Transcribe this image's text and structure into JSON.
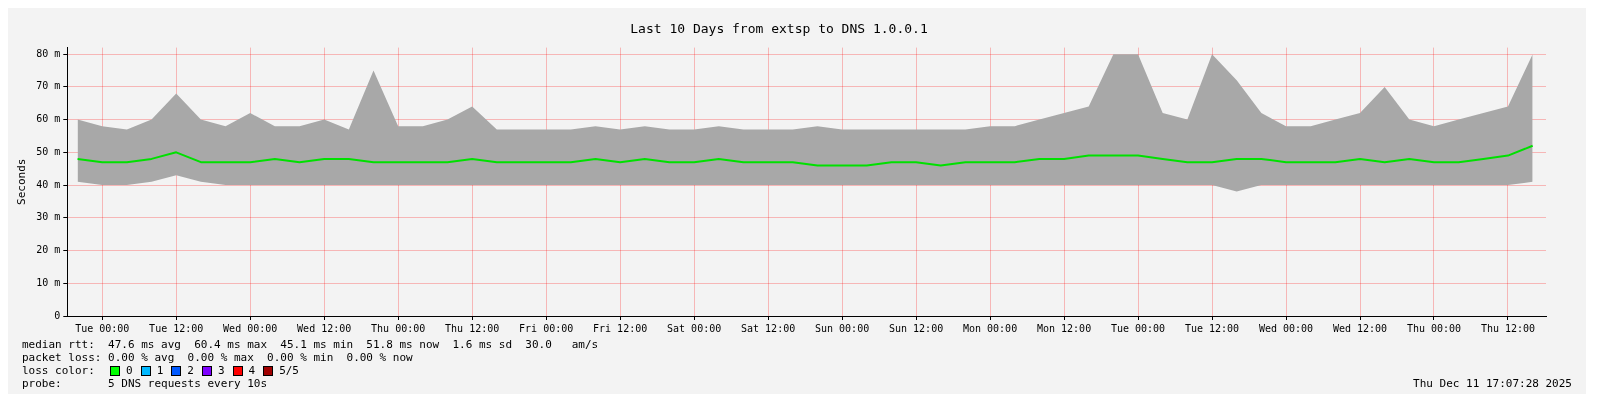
{
  "chart_data": {
    "type": "line",
    "title": "Last 10 Days from extsp to DNS 1.0.0.1",
    "ylabel": "Seconds",
    "xlim": [
      "2025-12-01T18:20",
      "2025-12-11T18:10"
    ],
    "xticks": [
      {
        "value": "2025-12-02T00:00",
        "label": "Tue 00:00"
      },
      {
        "value": "2025-12-02T12:00",
        "label": "Tue 12:00"
      },
      {
        "value": "2025-12-03T00:00",
        "label": "Wed 00:00"
      },
      {
        "value": "2025-12-03T12:00",
        "label": "Wed 12:00"
      },
      {
        "value": "2025-12-04T00:00",
        "label": "Thu 00:00"
      },
      {
        "value": "2025-12-04T12:00",
        "label": "Thu 12:00"
      },
      {
        "value": "2025-12-05T00:00",
        "label": "Fri 00:00"
      },
      {
        "value": "2025-12-05T12:00",
        "label": "Fri 12:00"
      },
      {
        "value": "2025-12-06T00:00",
        "label": "Sat 00:00"
      },
      {
        "value": "2025-12-06T12:00",
        "label": "Sat 12:00"
      },
      {
        "value": "2025-12-07T00:00",
        "label": "Sun 00:00"
      },
      {
        "value": "2025-12-07T12:00",
        "label": "Sun 12:00"
      },
      {
        "value": "2025-12-08T00:00",
        "label": "Mon 00:00"
      },
      {
        "value": "2025-12-08T12:00",
        "label": "Mon 12:00"
      },
      {
        "value": "2025-12-09T00:00",
        "label": "Tue 00:00"
      },
      {
        "value": "2025-12-09T12:00",
        "label": "Tue 12:00"
      },
      {
        "value": "2025-12-10T00:00",
        "label": "Wed 00:00"
      },
      {
        "value": "2025-12-10T12:00",
        "label": "Wed 12:00"
      },
      {
        "value": "2025-12-11T00:00",
        "label": "Thu 00:00"
      },
      {
        "value": "2025-12-11T12:00",
        "label": "Thu 12:00"
      }
    ],
    "ylim": [
      0,
      82
    ],
    "yticks": [
      0,
      {
        "value": 10,
        "label": "10 m"
      },
      {
        "value": 20,
        "label": "20 m"
      },
      {
        "value": 30,
        "label": "30 m"
      },
      {
        "value": 40,
        "label": "40 m"
      },
      {
        "value": 50,
        "label": "50 m"
      },
      {
        "value": 60,
        "label": "60 m"
      },
      {
        "value": 70,
        "label": "70 m"
      },
      {
        "value": 80,
        "label": "80 m"
      }
    ],
    "grid": true,
    "legend": false,
    "marker": "none",
    "line_style": "solid",
    "x": [
      "2025-12-01T20:00",
      "2025-12-02T00:00",
      "2025-12-02T04:00",
      "2025-12-02T08:00",
      "2025-12-02T12:00",
      "2025-12-02T16:00",
      "2025-12-02T20:00",
      "2025-12-03T00:00",
      "2025-12-03T04:00",
      "2025-12-03T08:00",
      "2025-12-03T12:00",
      "2025-12-03T16:00",
      "2025-12-03T20:00",
      "2025-12-04T00:00",
      "2025-12-04T04:00",
      "2025-12-04T08:00",
      "2025-12-04T12:00",
      "2025-12-04T16:00",
      "2025-12-04T20:00",
      "2025-12-05T00:00",
      "2025-12-05T04:00",
      "2025-12-05T08:00",
      "2025-12-05T12:00",
      "2025-12-05T16:00",
      "2025-12-05T20:00",
      "2025-12-06T00:00",
      "2025-12-06T04:00",
      "2025-12-06T08:00",
      "2025-12-06T12:00",
      "2025-12-06T16:00",
      "2025-12-06T20:00",
      "2025-12-07T00:00",
      "2025-12-07T04:00",
      "2025-12-07T08:00",
      "2025-12-07T12:00",
      "2025-12-07T16:00",
      "2025-12-07T20:00",
      "2025-12-08T00:00",
      "2025-12-08T04:00",
      "2025-12-08T08:00",
      "2025-12-08T12:00",
      "2025-12-08T16:00",
      "2025-12-08T20:00",
      "2025-12-09T00:00",
      "2025-12-09T04:00",
      "2025-12-09T08:00",
      "2025-12-09T12:00",
      "2025-12-09T16:00",
      "2025-12-09T20:00",
      "2025-12-10T00:00",
      "2025-12-10T04:00",
      "2025-12-10T08:00",
      "2025-12-10T12:00",
      "2025-12-10T16:00",
      "2025-12-10T20:00",
      "2025-12-11T00:00",
      "2025-12-11T04:00",
      "2025-12-11T08:00",
      "2025-12-11T12:00",
      "2025-12-11T16:00"
    ],
    "series": [
      {
        "color": "#00e000",
        "values": [
          48,
          47,
          47,
          48,
          50,
          47,
          47,
          47,
          48,
          47,
          48,
          48,
          47,
          47,
          47,
          47,
          48,
          47,
          47,
          47,
          47,
          48,
          47,
          48,
          47,
          47,
          48,
          47,
          47,
          47,
          46,
          46,
          46,
          47,
          47,
          46,
          47,
          47,
          47,
          48,
          48,
          49,
          49,
          49,
          48,
          47,
          47,
          48,
          48,
          47,
          47,
          47,
          48,
          47,
          48,
          47,
          47,
          48,
          49,
          52
        ],
        "lower": [
          41,
          40,
          40,
          41,
          43,
          41,
          40,
          40,
          40,
          40,
          40,
          40,
          40,
          40,
          40,
          40,
          40,
          40,
          40,
          40,
          40,
          40,
          40,
          40,
          40,
          40,
          40,
          40,
          40,
          40,
          40,
          40,
          40,
          40,
          40,
          40,
          40,
          40,
          40,
          40,
          40,
          40,
          40,
          40,
          40,
          40,
          40,
          38,
          40,
          40,
          40,
          40,
          40,
          40,
          40,
          40,
          40,
          40,
          40,
          41
        ],
        "upper": [
          60,
          58,
          57,
          60,
          68,
          60,
          58,
          62,
          58,
          58,
          60,
          57,
          75,
          58,
          58,
          60,
          64,
          57,
          57,
          57,
          57,
          58,
          57,
          58,
          57,
          57,
          58,
          57,
          57,
          57,
          58,
          57,
          57,
          57,
          57,
          57,
          57,
          58,
          58,
          60,
          62,
          64,
          80,
          80,
          62,
          60,
          80,
          72,
          62,
          58,
          58,
          60,
          62,
          70,
          60,
          58,
          60,
          62,
          64,
          80
        ]
      }
    ],
    "annotations": [
      "median rtt:  47.6 ms avg  60.4 ms max  45.1 ms min  51.8 ms now  1.6 ms sd  30.0   am/s",
      "packet loss: 0.00 % avg  0.00 % max  0.00 % min  0.00 % now",
      "loss color:",
      "0",
      "1",
      "2",
      "3",
      "4",
      "5/5",
      "probe:       5 DNS requests every 10s",
      "Thu Dec 11 17:07:28 2025"
    ]
  }
}
